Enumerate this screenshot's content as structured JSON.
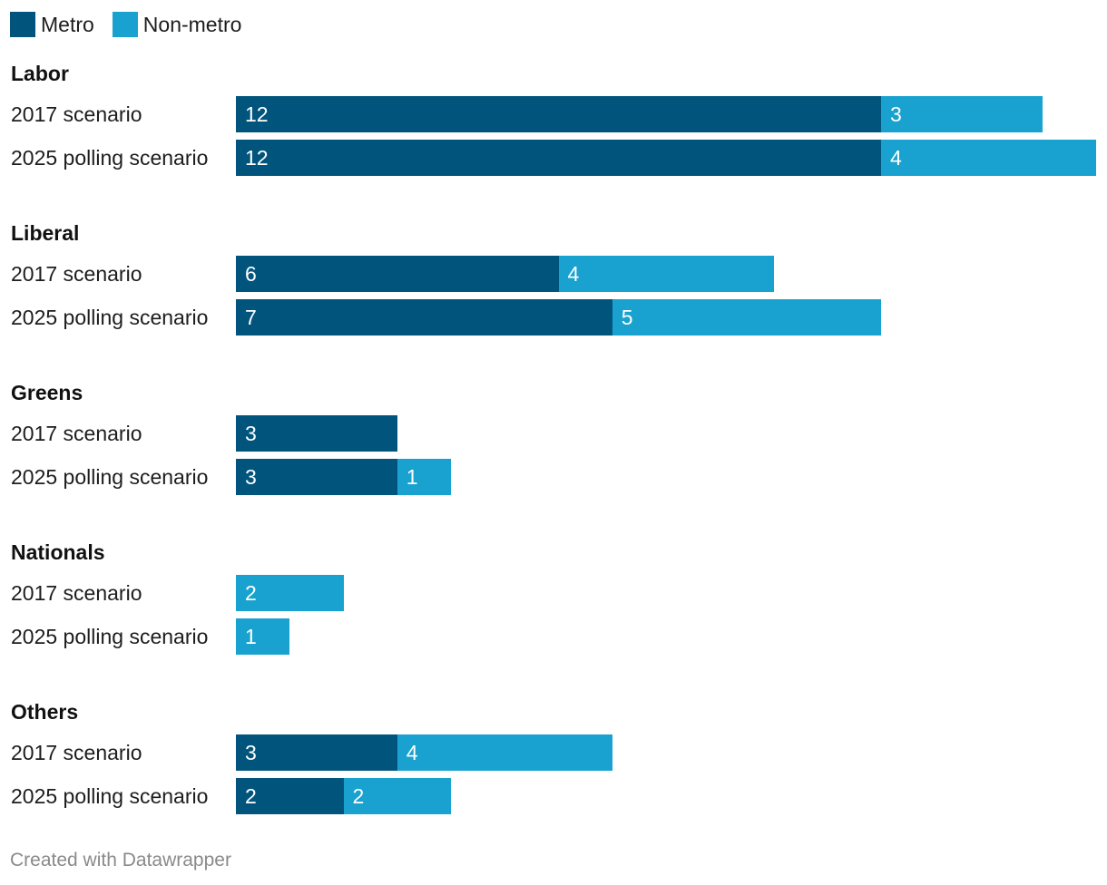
{
  "colors": {
    "metro": "#01557d",
    "non_metro": "#19a2cf"
  },
  "footer": "Created with Datawrapper",
  "chart_data": {
    "type": "bar",
    "orientation": "horizontal",
    "stacked": true,
    "legend_position": "top-left",
    "grid": false,
    "series": [
      {
        "name": "Metro",
        "color": "#01557d"
      },
      {
        "name": "Non-metro",
        "color": "#19a2cf"
      }
    ],
    "groups": [
      {
        "title": "Labor",
        "rows": [
          {
            "label": "2017 scenario",
            "values": [
              12,
              3
            ]
          },
          {
            "label": "2025 polling scenario",
            "values": [
              12,
              4
            ]
          }
        ]
      },
      {
        "title": "Liberal",
        "rows": [
          {
            "label": "2017 scenario",
            "values": [
              6,
              4
            ]
          },
          {
            "label": "2025 polling scenario",
            "values": [
              7,
              5
            ]
          }
        ]
      },
      {
        "title": "Greens",
        "rows": [
          {
            "label": "2017 scenario",
            "values": [
              3,
              0
            ]
          },
          {
            "label": "2025 polling scenario",
            "values": [
              3,
              1
            ]
          }
        ]
      },
      {
        "title": "Nationals",
        "rows": [
          {
            "label": "2017 scenario",
            "values": [
              0,
              2
            ]
          },
          {
            "label": "2025 polling scenario",
            "values": [
              0,
              1
            ]
          }
        ]
      },
      {
        "title": "Others",
        "rows": [
          {
            "label": "2017 scenario",
            "values": [
              3,
              4
            ]
          },
          {
            "label": "2025 polling scenario",
            "values": [
              2,
              2
            ]
          }
        ]
      }
    ]
  }
}
